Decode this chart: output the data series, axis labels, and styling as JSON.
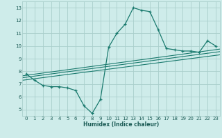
{
  "xlabel": "Humidex (Indice chaleur)",
  "bg_color": "#ceecea",
  "grid_color": "#aacfcc",
  "line_color": "#1a7a6e",
  "xlim": [
    -0.5,
    23.5
  ],
  "ylim": [
    4.5,
    13.5
  ],
  "xticks": [
    0,
    1,
    2,
    3,
    4,
    5,
    6,
    7,
    8,
    9,
    10,
    11,
    12,
    13,
    14,
    15,
    16,
    17,
    18,
    19,
    20,
    21,
    22,
    23
  ],
  "yticks": [
    5,
    6,
    7,
    8,
    9,
    10,
    11,
    12,
    13
  ],
  "main_x": [
    0,
    1,
    2,
    3,
    4,
    5,
    6,
    7,
    8,
    9,
    10,
    11,
    12,
    13,
    14,
    15,
    16,
    17,
    18,
    19,
    20,
    21,
    22,
    23
  ],
  "main_y": [
    7.8,
    7.3,
    6.9,
    6.8,
    6.8,
    6.7,
    6.5,
    5.3,
    4.7,
    5.8,
    9.9,
    11.0,
    11.7,
    13.0,
    12.8,
    12.7,
    11.3,
    9.8,
    9.7,
    9.6,
    9.6,
    9.5,
    10.4,
    10.0
  ],
  "trend_lines": [
    [
      7.3,
      9.3
    ],
    [
      7.5,
      9.55
    ],
    [
      7.65,
      9.75
    ]
  ]
}
